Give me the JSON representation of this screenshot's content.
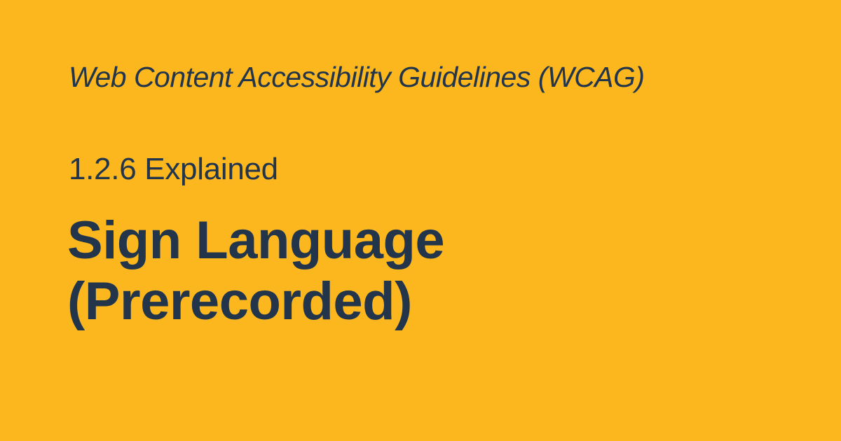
{
  "card": {
    "eyebrow": "Web Content Accessibility Guidelines (WCAG)",
    "subtitle": "1.2.6 Explained",
    "title_lines": [
      "Sign Language",
      "(Prerecorded)"
    ]
  },
  "colors": {
    "background": "#FCB71E",
    "text": "#22354B"
  }
}
